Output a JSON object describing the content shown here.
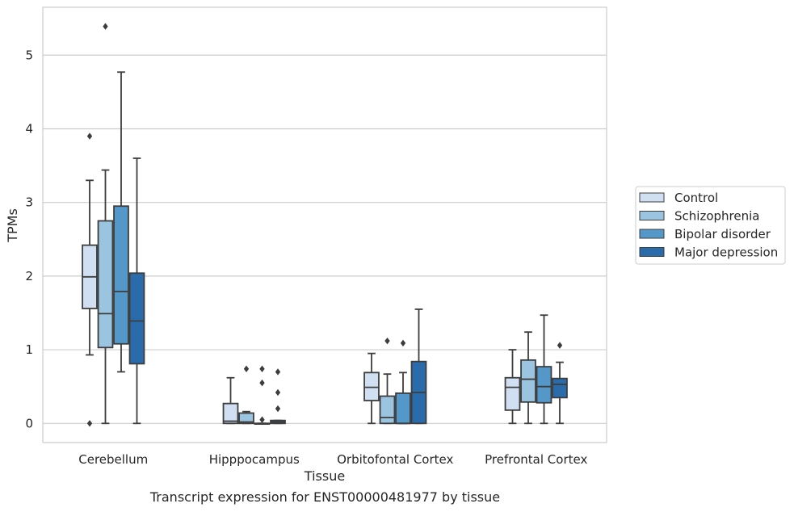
{
  "caption": "Transcript expression for ENST00000481977 by tissue",
  "chart_data": {
    "type": "box",
    "xlabel": "Tissue",
    "ylabel": "TPMs",
    "ylim": [
      -0.26,
      5.65
    ],
    "yticks": [
      0,
      1,
      2,
      3,
      4,
      5
    ],
    "grid": "horizontal",
    "legend_position": "right",
    "categories": [
      "Cerebellum",
      "Hipppocampus",
      "Orbitofontal Cortex",
      "Prefrontal Cortex"
    ],
    "series": [
      {
        "name": "Control",
        "color": "#d0e0f2",
        "boxes": [
          {
            "whislo": 0.93,
            "q1": 1.56,
            "med": 1.99,
            "q3": 2.42,
            "whishi": 3.3,
            "fliers": [
              3.9,
              0.0
            ]
          },
          {
            "whislo": 0.0,
            "q1": 0.0,
            "med": 0.03,
            "q3": 0.27,
            "whishi": 0.62,
            "fliers": []
          },
          {
            "whislo": 0.0,
            "q1": 0.31,
            "med": 0.49,
            "q3": 0.69,
            "whishi": 0.95,
            "fliers": []
          },
          {
            "whislo": 0.0,
            "q1": 0.18,
            "med": 0.49,
            "q3": 0.62,
            "whishi": 1.0,
            "fliers": []
          }
        ]
      },
      {
        "name": "Schizophrenia",
        "color": "#9ac4df",
        "boxes": [
          {
            "whislo": 0.0,
            "q1": 1.03,
            "med": 1.49,
            "q3": 2.75,
            "whishi": 3.44,
            "fliers": [
              5.39
            ]
          },
          {
            "whislo": 0.0,
            "q1": 0.0,
            "med": 0.02,
            "q3": 0.14,
            "whishi": 0.16,
            "fliers": [
              0.74
            ]
          },
          {
            "whislo": 0.0,
            "q1": 0.0,
            "med": 0.08,
            "q3": 0.37,
            "whishi": 0.67,
            "fliers": [
              1.12
            ]
          },
          {
            "whislo": 0.0,
            "q1": 0.29,
            "med": 0.6,
            "q3": 0.86,
            "whishi": 1.24,
            "fliers": []
          }
        ]
      },
      {
        "name": "Bipolar disorder",
        "color": "#5398c9",
        "boxes": [
          {
            "whislo": 0.7,
            "q1": 1.08,
            "med": 1.79,
            "q3": 2.95,
            "whishi": 4.77,
            "fliers": []
          },
          {
            "whislo": 0.0,
            "q1": 0.0,
            "med": 0.0,
            "q3": 0.0,
            "whishi": 0.0,
            "fliers": [
              0.74,
              0.55,
              0.05
            ]
          },
          {
            "whislo": 0.0,
            "q1": 0.0,
            "med": 0.0,
            "q3": 0.41,
            "whishi": 0.69,
            "fliers": [
              1.09
            ]
          },
          {
            "whislo": 0.0,
            "q1": 0.28,
            "med": 0.5,
            "q3": 0.77,
            "whishi": 1.47,
            "fliers": []
          }
        ]
      },
      {
        "name": "Major depression",
        "color": "#2a6bac",
        "boxes": [
          {
            "whislo": 0.0,
            "q1": 0.81,
            "med": 1.39,
            "q3": 2.04,
            "whishi": 3.6,
            "fliers": []
          },
          {
            "whislo": 0.0,
            "q1": 0.0,
            "med": 0.02,
            "q3": 0.04,
            "whishi": 0.04,
            "fliers": [
              0.7,
              0.42,
              0.2
            ]
          },
          {
            "whislo": 0.0,
            "q1": 0.0,
            "med": 0.42,
            "q3": 0.84,
            "whishi": 1.55,
            "fliers": []
          },
          {
            "whislo": 0.0,
            "q1": 0.35,
            "med": 0.53,
            "q3": 0.61,
            "whishi": 0.83,
            "fliers": [
              1.06
            ]
          }
        ]
      }
    ]
  }
}
